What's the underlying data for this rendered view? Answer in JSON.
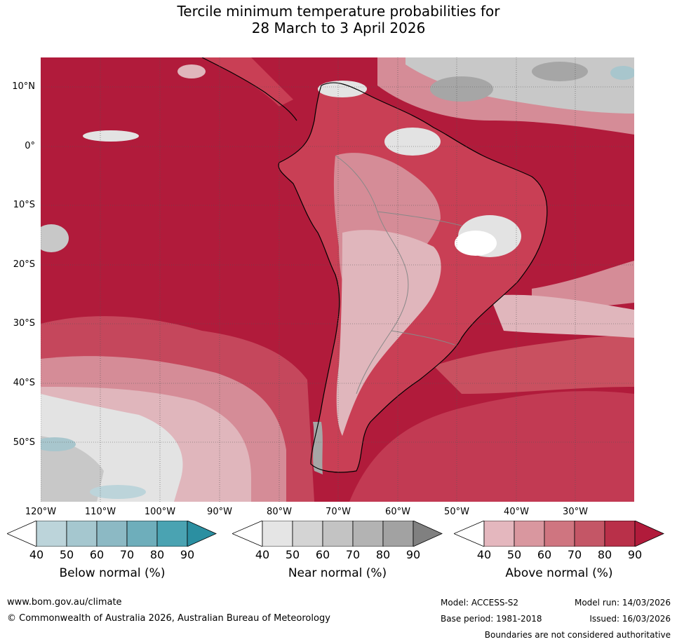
{
  "title": {
    "line1": "Tercile minimum temperature probabilities for",
    "line2": "28 March to 3 April 2026"
  },
  "map": {
    "lat_labels": [
      "10°N",
      "0°",
      "10°S",
      "20°S",
      "30°S",
      "40°S",
      "50°S"
    ],
    "lon_labels": [
      "120°W",
      "110°W",
      "100°W",
      "90°W",
      "80°W",
      "70°W",
      "60°W",
      "50°W",
      "40°W",
      "30°W"
    ],
    "colors": {
      "ocean_high": "#b11b3b",
      "land_high": "#c93f55",
      "above_70": "#cf6b7a",
      "above_60": "#d58c97",
      "above_50": "#e0b6bc",
      "near_70": "#c8c8c8",
      "near_50": "#e3e3e3",
      "near_80": "#a6a6a6",
      "below_50": "#a8c6cd"
    }
  },
  "legend": {
    "below": {
      "title": "Below normal (%)",
      "ticks": [
        "40",
        "50",
        "60",
        "70",
        "80",
        "90"
      ],
      "colors": [
        "#ffffff",
        "#bcd4da",
        "#a5c7cf",
        "#8cb9c4",
        "#6eaebb",
        "#4aa3b2",
        "#2b8fa1"
      ]
    },
    "near": {
      "title": "Near normal (%)",
      "ticks": [
        "40",
        "50",
        "60",
        "70",
        "80",
        "90"
      ],
      "colors": [
        "#ffffff",
        "#e5e5e5",
        "#d4d4d4",
        "#c3c3c3",
        "#b3b3b3",
        "#a2a2a2",
        "#808080"
      ]
    },
    "above": {
      "title": "Above normal (%)",
      "ticks": [
        "40",
        "50",
        "60",
        "70",
        "80",
        "90"
      ],
      "colors": [
        "#ffffff",
        "#e4b7be",
        "#d9979f",
        "#cf7580",
        "#c45666",
        "#b93049",
        "#b11b3b"
      ]
    }
  },
  "footer": {
    "website": "www.bom.gov.au/climate",
    "copyright": "© Commonwealth of Australia 2026, Australian Bureau of Meteorology",
    "model": "Model: ACCESS-S2",
    "base_period": "Base period: 1981-2018",
    "model_run": "Model run: 14/03/2026",
    "issued": "Issued: 16/03/2026",
    "disclaimer": "Boundaries are not considered authoritative"
  }
}
